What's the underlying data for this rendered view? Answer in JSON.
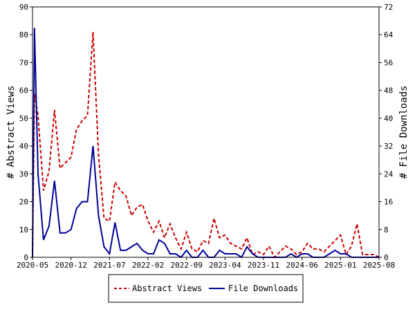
{
  "chart_data": {
    "type": "line",
    "title": "",
    "xlabel": "",
    "ylabel_left": "# Abstract Views",
    "ylabel_right": "# File Downloads",
    "x_tick_labels": [
      "2020-05",
      "2020-12",
      "2021-07",
      "2022-02",
      "2022-09",
      "2023-04",
      "2023-11",
      "2024-06",
      "2025-01",
      "2025-08"
    ],
    "x_range": [
      "2020-05",
      "2025-08"
    ],
    "y_left_range": [
      0,
      90
    ],
    "y_left_ticks": [
      0,
      10,
      20,
      30,
      40,
      50,
      60,
      70,
      80,
      90
    ],
    "y_right_range": [
      0,
      72
    ],
    "y_right_ticks": [
      0,
      8,
      16,
      24,
      32,
      40,
      48,
      56,
      64,
      72
    ],
    "grid": false,
    "legend_position": "bottom",
    "colors": {
      "abstract_views": "#cc0000",
      "file_downloads": "#000099"
    },
    "series": [
      {
        "name": "Abstract Views",
        "axis": "left",
        "style": "dashed",
        "x": [
          "2020-05",
          "2020-05",
          "2020-06",
          "2020-07",
          "2020-08",
          "2020-09",
          "2020-10",
          "2020-11",
          "2020-12",
          "2021-01",
          "2021-02",
          "2021-03",
          "2021-04",
          "2021-05",
          "2021-06",
          "2021-07",
          "2021-08",
          "2021-09",
          "2021-10",
          "2021-11",
          "2021-12",
          "2022-01",
          "2022-02",
          "2022-03",
          "2022-04",
          "2022-05",
          "2022-06",
          "2022-07",
          "2022-08",
          "2022-09",
          "2022-10",
          "2022-11",
          "2022-12",
          "2023-01",
          "2023-02",
          "2023-03",
          "2023-04",
          "2023-05",
          "2023-06",
          "2023-07",
          "2023-08",
          "2023-09",
          "2023-10",
          "2023-11",
          "2023-12",
          "2024-01",
          "2024-02",
          "2024-03",
          "2024-04",
          "2024-05",
          "2024-06",
          "2024-07",
          "2024-08",
          "2024-09",
          "2024-10",
          "2024-11",
          "2024-12",
          "2025-01",
          "2025-02",
          "2025-03",
          "2025-04",
          "2025-05",
          "2025-06",
          "2025-07",
          "2025-08"
        ],
        "values": [
          0,
          59,
          51,
          24,
          31,
          53,
          32,
          34,
          36,
          46,
          49,
          51,
          81,
          37,
          14,
          13,
          27,
          24,
          22,
          15,
          18,
          19,
          13,
          9,
          13,
          7,
          12,
          7,
          3,
          9,
          3,
          2,
          6,
          5,
          14,
          7,
          8,
          5,
          4,
          3,
          7,
          1,
          2,
          1,
          4,
          0,
          2,
          4,
          3,
          1,
          2,
          5,
          3,
          3,
          2,
          4,
          6,
          8,
          1,
          4,
          12,
          1,
          1,
          1,
          0
        ]
      },
      {
        "name": "File Downloads",
        "axis": "right",
        "style": "solid",
        "x": [
          "2020-05",
          "2020-05",
          "2020-06",
          "2020-07",
          "2020-08",
          "2020-09",
          "2020-10",
          "2020-11",
          "2020-12",
          "2021-01",
          "2021-02",
          "2021-03",
          "2021-04",
          "2021-05",
          "2021-06",
          "2021-07",
          "2021-08",
          "2021-09",
          "2021-10",
          "2021-11",
          "2021-12",
          "2022-01",
          "2022-02",
          "2022-03",
          "2022-04",
          "2022-05",
          "2022-06",
          "2022-07",
          "2022-08",
          "2022-09",
          "2022-10",
          "2022-11",
          "2022-12",
          "2023-01",
          "2023-02",
          "2023-03",
          "2023-04",
          "2023-05",
          "2023-06",
          "2023-07",
          "2023-08",
          "2023-09",
          "2023-10",
          "2023-11",
          "2023-12",
          "2024-01",
          "2024-02",
          "2024-03",
          "2024-04",
          "2024-05",
          "2024-06",
          "2024-07",
          "2024-08",
          "2024-09",
          "2024-10",
          "2024-11",
          "2024-12",
          "2025-01",
          "2025-02",
          "2025-03",
          "2025-04",
          "2025-05",
          "2025-06",
          "2025-07",
          "2025-08"
        ],
        "values": [
          0,
          66,
          24,
          5,
          9,
          22,
          7,
          7,
          8,
          14,
          16,
          16,
          32,
          12,
          3,
          1,
          10,
          2,
          2,
          3,
          4,
          2,
          1,
          1,
          5,
          4,
          1,
          1,
          0,
          2,
          0,
          0,
          2,
          0,
          0,
          2,
          1,
          1,
          1,
          0,
          3,
          1,
          0,
          0,
          0,
          0,
          0,
          0,
          1,
          0,
          1,
          1,
          0,
          0,
          0,
          1,
          2,
          1,
          1,
          0,
          0,
          0,
          0,
          0,
          0
        ]
      }
    ]
  }
}
